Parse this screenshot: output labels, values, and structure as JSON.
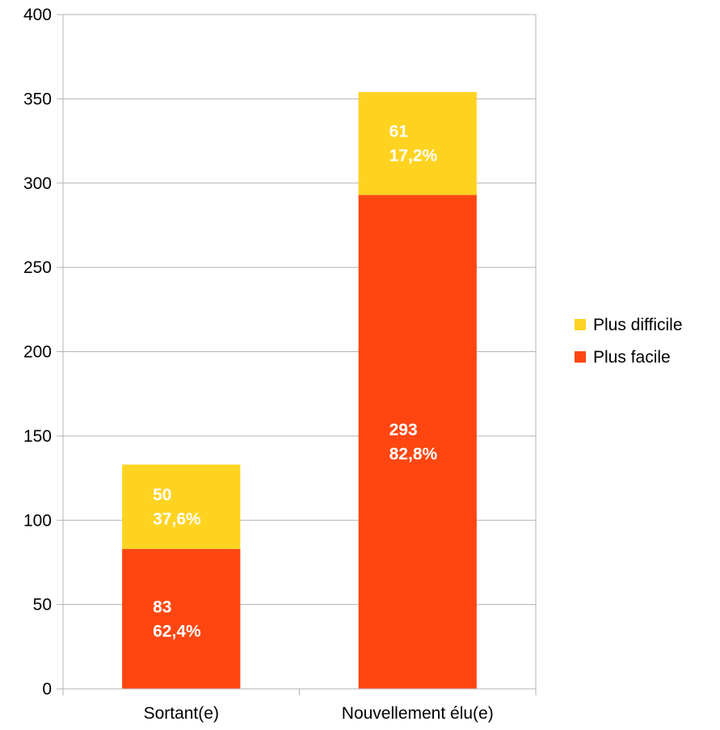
{
  "chart_data": {
    "type": "bar",
    "stacked": true,
    "categories": [
      "Sortant(e)",
      "Nouvellement élu(e)"
    ],
    "series": [
      {
        "name": "Plus facile",
        "color": "#ff4610",
        "values": [
          83,
          293
        ],
        "labels": [
          [
            "83",
            "62,4%"
          ],
          [
            "293",
            "82,8%"
          ]
        ]
      },
      {
        "name": "Plus difficile",
        "color": "#ffd320",
        "values": [
          50,
          61
        ],
        "labels": [
          [
            "50",
            "37,6%"
          ],
          [
            "61",
            "17,2%"
          ]
        ]
      }
    ],
    "legend_order": [
      "Plus difficile",
      "Plus facile"
    ],
    "ylim": [
      0,
      400
    ],
    "yticks": [
      0,
      50,
      100,
      150,
      200,
      250,
      300,
      350,
      400
    ],
    "grid": true,
    "legend_position": "right",
    "title": "",
    "xlabel": "",
    "ylabel": ""
  }
}
